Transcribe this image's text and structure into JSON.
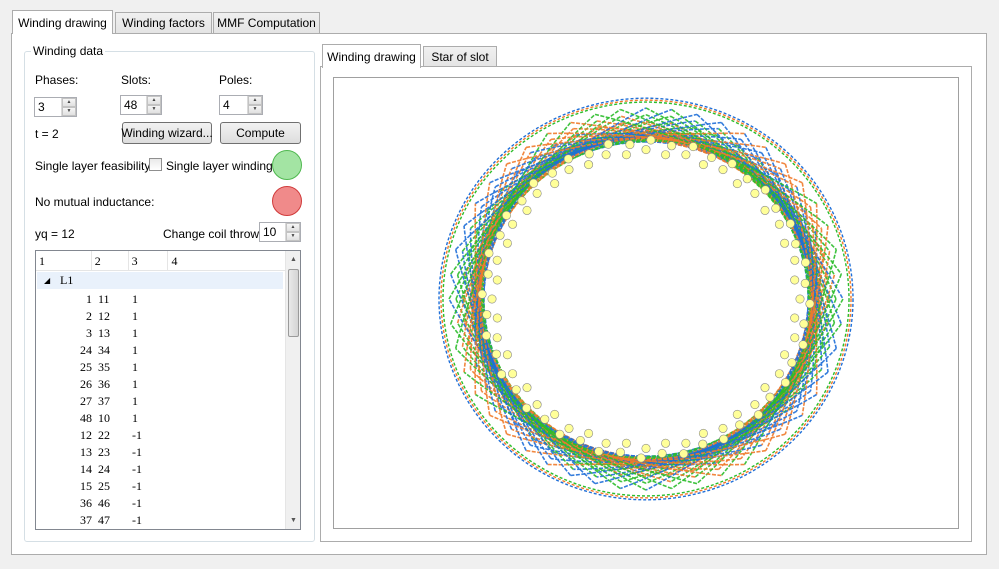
{
  "main_tabs": [
    "Winding drawing",
    "Winding factors",
    "MMF Computation"
  ],
  "winding_data": {
    "title": "Winding data",
    "phases_label": "Phases:",
    "phases_value": "3",
    "slots_label": "Slots:",
    "slots_value": "48",
    "poles_label": "Poles:",
    "poles_value": "4",
    "t_text": "t = 2",
    "wizard_button": "Winding wizard...",
    "compute_button": "Compute",
    "single_layer_feasibility_label": "Single layer feasibility:",
    "single_layer_checkbox_label": "Single layer winding",
    "single_layer_checked": false,
    "no_mutual_label": "No mutual inductance:",
    "yq_text": "yq = 12",
    "coil_throw_label": "Change coil throw:",
    "coil_throw_value": "10",
    "led_single_layer_color": "#a3e4a3",
    "led_mutual_color": "#f08a8a"
  },
  "table": {
    "columns": [
      "1",
      "2",
      "3",
      "4"
    ],
    "group": "L1",
    "rows": [
      [
        "1",
        "11",
        "1"
      ],
      [
        "2",
        "12",
        "1"
      ],
      [
        "3",
        "13",
        "1"
      ],
      [
        "24",
        "34",
        "1"
      ],
      [
        "25",
        "35",
        "1"
      ],
      [
        "26",
        "36",
        "1"
      ],
      [
        "27",
        "37",
        "1"
      ],
      [
        "48",
        "10",
        "1"
      ],
      [
        "12",
        "22",
        "-1"
      ],
      [
        "13",
        "23",
        "-1"
      ],
      [
        "14",
        "24",
        "-1"
      ],
      [
        "15",
        "25",
        "-1"
      ],
      [
        "36",
        "46",
        "-1"
      ],
      [
        "37",
        "47",
        "-1"
      ]
    ]
  },
  "right_tabs": [
    "Winding drawing",
    "Star of slot"
  ],
  "drawing": {
    "slots": 48,
    "phase_colors": [
      "#1f6fd8",
      "#f07a2a",
      "#2bbd2b"
    ],
    "slot_marker_color": "#ffff99",
    "text_color": "#444444"
  }
}
